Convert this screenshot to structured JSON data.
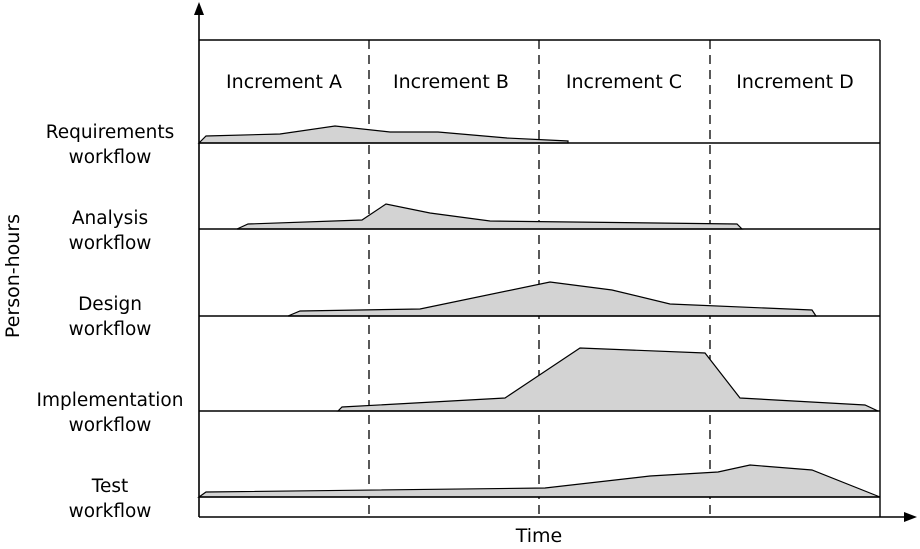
{
  "y_axis_label": "Person-hours",
  "x_axis_label": "Time",
  "increments": [
    "Increment A",
    "Increment B",
    "Increment C",
    "Increment D"
  ],
  "workflows": [
    {
      "id": "requirements",
      "line1": "Requirements",
      "line2": "workflow"
    },
    {
      "id": "analysis",
      "line1": "Analysis",
      "line2": "workflow"
    },
    {
      "id": "design",
      "line1": "Design",
      "line2": "workflow"
    },
    {
      "id": "implementation",
      "line1": "Implementation",
      "line2": "workflow"
    },
    {
      "id": "test",
      "line1": "Test",
      "line2": "workflow"
    }
  ],
  "colors": {
    "fill": "#d3d3d3",
    "stroke": "#000000",
    "background": "#ffffff"
  }
}
